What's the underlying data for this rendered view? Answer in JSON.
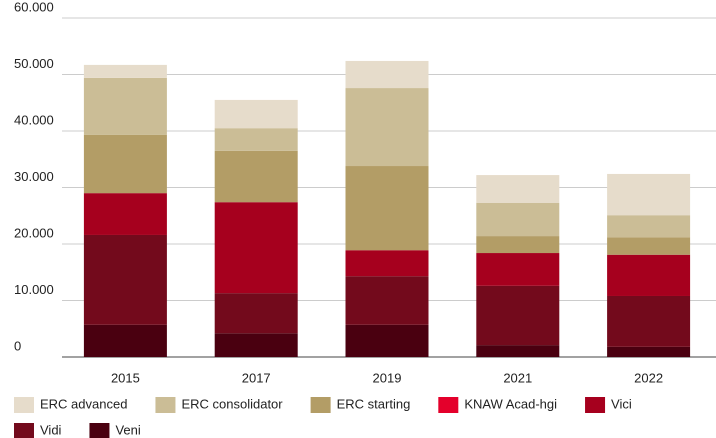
{
  "chart_data": {
    "type": "stacked_bar",
    "categories": [
      "2015",
      "2017",
      "2019",
      "2021",
      "2022"
    ],
    "series": [
      {
        "name": "Veni",
        "color": "#4a0010",
        "values": [
          5700,
          4200,
          5700,
          2100,
          1800
        ]
      },
      {
        "name": "Vidi",
        "color": "#730a1c",
        "values": [
          15900,
          7100,
          8600,
          10500,
          9000
        ]
      },
      {
        "name": "Vici",
        "color": "#a6001e",
        "values": [
          7400,
          16100,
          4600,
          5800,
          7300
        ]
      },
      {
        "name": "KNAW Acad-hgi",
        "color": "#e4002b",
        "values": [
          0,
          0,
          0,
          0,
          0
        ]
      },
      {
        "name": "ERC starting",
        "color": "#b39d66",
        "values": [
          10300,
          9100,
          14900,
          3000,
          3100
        ]
      },
      {
        "name": "ERC consolidator",
        "color": "#cbbd96",
        "values": [
          10100,
          4000,
          13800,
          5900,
          3900
        ]
      },
      {
        "name": "ERC advanced",
        "color": "#e6dccb",
        "values": [
          2300,
          5000,
          4800,
          4900,
          7300
        ]
      }
    ],
    "ylim": [
      0,
      60000
    ],
    "yticks": [
      0,
      {
        "value": 10000,
        "label": "10.000"
      },
      {
        "value": 20000,
        "label": "20.000"
      },
      {
        "value": 30000,
        "label": "30.000"
      },
      {
        "value": 40000,
        "label": "40.000"
      },
      {
        "value": 50000,
        "label": "50.000"
      },
      {
        "value": 60000,
        "label": "60.000"
      }
    ],
    "grid": true
  }
}
